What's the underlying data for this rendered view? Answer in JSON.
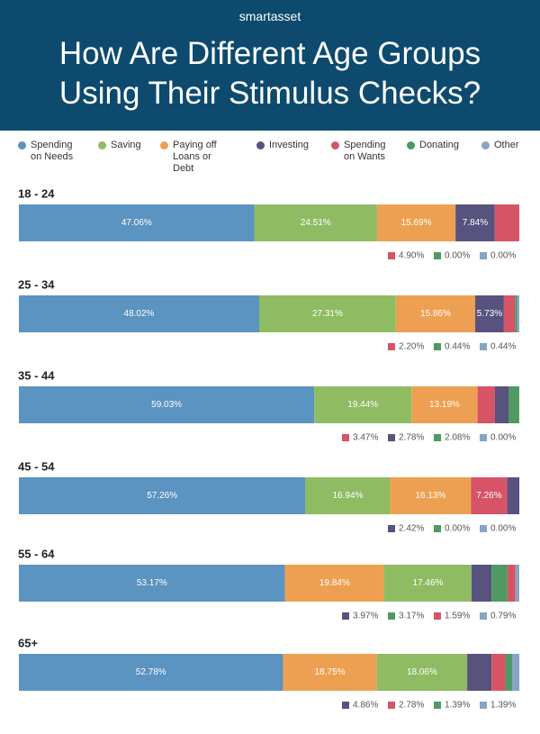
{
  "chart_data": {
    "type": "stacked-bar-rows",
    "brand": "smartasset",
    "title_lines": [
      "How Are Different Age Groups",
      "Using Their Stimulus Checks?"
    ],
    "xlim": [
      0,
      100
    ],
    "series": [
      {
        "name": "Spending on Needs",
        "color": "#5b93c1"
      },
      {
        "name": "Saving",
        "color": "#8fbb63"
      },
      {
        "name": "Paying off Loans or Debt",
        "color": "#eea052"
      },
      {
        "name": "Investing",
        "color": "#57527e"
      },
      {
        "name": "Spending on Wants",
        "color": "#d65466"
      },
      {
        "name": "Donating",
        "color": "#4f9a62"
      },
      {
        "name": "Other",
        "color": "#87a4c4"
      }
    ],
    "rows": [
      {
        "label": "18 - 24",
        "values": [
          47.06,
          24.51,
          15.69,
          7.84,
          4.9,
          0.0,
          0.0
        ],
        "value_labels": [
          "47.06%",
          "24.51%",
          "15.69%",
          "7.84%",
          "4.90%",
          "0.00%",
          "0.00%"
        ],
        "colors": [
          "#5b93c1",
          "#8fbb63",
          "#eea052",
          "#57527e",
          "#d65466",
          "#4f9a62",
          "#87a4c4"
        ]
      },
      {
        "label": "25 - 34",
        "values": [
          48.02,
          27.31,
          15.86,
          5.73,
          2.2,
          0.44,
          0.44
        ],
        "value_labels": [
          "48.02%",
          "27.31%",
          "15.86%",
          "5.73%",
          "2.20%",
          "0.44%",
          "0.44%"
        ],
        "colors": [
          "#5b93c1",
          "#8fbb63",
          "#eea052",
          "#57527e",
          "#d65466",
          "#4f9a62",
          "#87a4c4"
        ]
      },
      {
        "label": "35 - 44",
        "values": [
          59.03,
          19.44,
          13.19,
          3.47,
          2.78,
          2.08,
          0.0
        ],
        "value_labels": [
          "59.03%",
          "19.44%",
          "13.19%",
          "3.47%",
          "2.78%",
          "2.08%",
          "0.00%"
        ],
        "colors": [
          "#5b93c1",
          "#8fbb63",
          "#eea052",
          "#d65466",
          "#57527e",
          "#4f9a62",
          "#87a4c4"
        ]
      },
      {
        "label": "45 - 54",
        "values": [
          57.26,
          16.94,
          16.13,
          7.26,
          2.42,
          0.0,
          0.0
        ],
        "value_labels": [
          "57.26%",
          "16.94%",
          "16.13%",
          "7.26%",
          "2.42%",
          "0.00%",
          "0.00%"
        ],
        "colors": [
          "#5b93c1",
          "#8fbb63",
          "#eea052",
          "#d65466",
          "#57527e",
          "#4f9a62",
          "#87a4c4"
        ]
      },
      {
        "label": "55 - 64",
        "values": [
          53.17,
          19.84,
          17.46,
          3.97,
          3.17,
          1.59,
          0.79
        ],
        "value_labels": [
          "53.17%",
          "19.84%",
          "17.46%",
          "3.97%",
          "3.17%",
          "1.59%",
          "0.79%"
        ],
        "colors": [
          "#5b93c1",
          "#eea052",
          "#8fbb63",
          "#57527e",
          "#4f9a62",
          "#d65466",
          "#87a4c4"
        ]
      },
      {
        "label": "65+",
        "values": [
          52.78,
          18.75,
          18.06,
          4.86,
          2.78,
          1.39,
          1.39
        ],
        "value_labels": [
          "52.78%",
          "18.75%",
          "18.06%",
          "4.86%",
          "2.78%",
          "1.39%",
          "1.39%"
        ],
        "colors": [
          "#5b93c1",
          "#eea052",
          "#8fbb63",
          "#57527e",
          "#d65466",
          "#4f9a62",
          "#87a4c4"
        ]
      }
    ]
  }
}
